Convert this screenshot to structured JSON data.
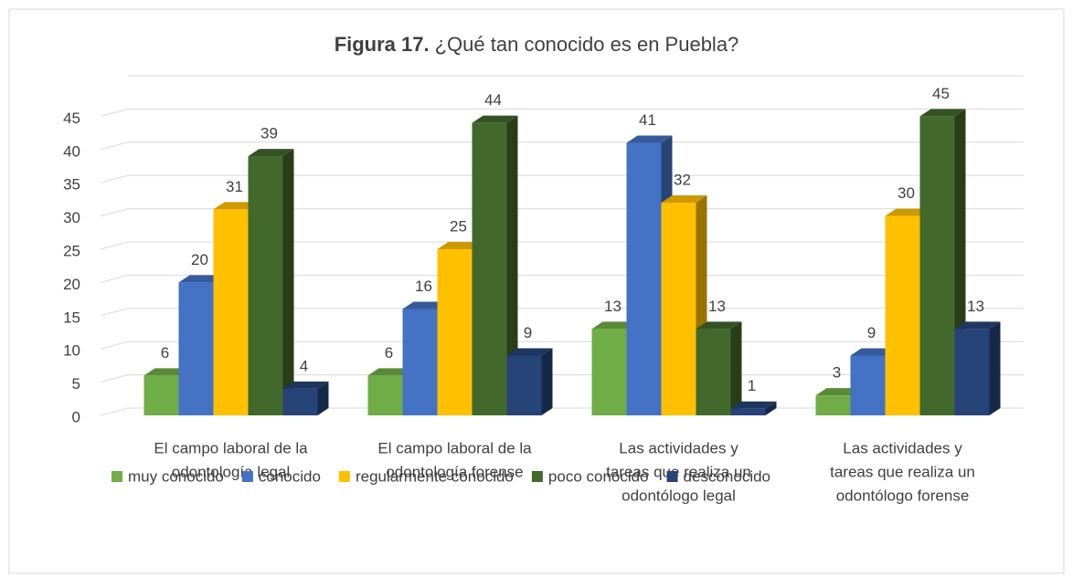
{
  "chart_data": {
    "type": "bar3d",
    "figure_label": "Figura 17.",
    "title": "¿Qué tan conocido es en Puebla?",
    "categories": [
      [
        "El campo laboral de la",
        "odontología legal"
      ],
      [
        "El campo laboral de la",
        "odontología forense"
      ],
      [
        "Las actividades y",
        "tareas que realiza un",
        "odontólogo legal"
      ],
      [
        "Las actividades y",
        "tareas que realiza un",
        "odontólogo forense"
      ]
    ],
    "series": [
      {
        "name": "muy conocido",
        "color": "#70ad47",
        "values": [
          6,
          6,
          13,
          3
        ]
      },
      {
        "name": "conocido",
        "color": "#4472c4",
        "values": [
          20,
          16,
          41,
          9
        ]
      },
      {
        "name": "regularmente conocido",
        "color": "#ffc000",
        "values": [
          31,
          25,
          32,
          30
        ]
      },
      {
        "name": "poco conocido",
        "color": "#43682b",
        "values": [
          39,
          44,
          13,
          45
        ]
      },
      {
        "name": "desconocido",
        "color": "#264478",
        "values": [
          4,
          9,
          1,
          13
        ]
      }
    ],
    "ylim": [
      0,
      50
    ],
    "yticks": [
      0,
      5,
      10,
      15,
      20,
      25,
      30,
      35,
      40,
      45
    ],
    "grid": true,
    "legend": "bottom"
  }
}
